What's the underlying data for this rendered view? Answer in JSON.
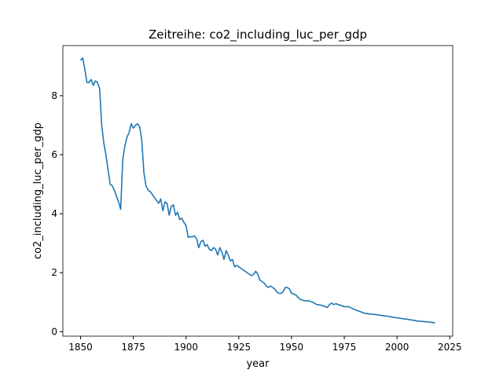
{
  "chart_data": {
    "type": "line",
    "title": "Zeitreihe: co2_including_luc_per_gdp",
    "x_label": "year",
    "y_label": "co2_including_luc_per_gdp",
    "color": "#1f77b4",
    "x": [
      1850,
      1851,
      1852,
      1853,
      1854,
      1855,
      1856,
      1857,
      1858,
      1859,
      1860,
      1861,
      1862,
      1863,
      1864,
      1865,
      1866,
      1867,
      1868,
      1869,
      1870,
      1871,
      1872,
      1873,
      1874,
      1875,
      1876,
      1877,
      1878,
      1879,
      1880,
      1881,
      1882,
      1883,
      1884,
      1885,
      1886,
      1887,
      1888,
      1889,
      1890,
      1891,
      1892,
      1893,
      1894,
      1895,
      1896,
      1897,
      1898,
      1899,
      1900,
      1901,
      1902,
      1903,
      1904,
      1905,
      1906,
      1907,
      1908,
      1909,
      1910,
      1911,
      1912,
      1913,
      1914,
      1915,
      1916,
      1917,
      1918,
      1919,
      1920,
      1921,
      1922,
      1923,
      1924,
      1925,
      1926,
      1927,
      1928,
      1929,
      1930,
      1931,
      1932,
      1933,
      1934,
      1935,
      1936,
      1937,
      1938,
      1939,
      1940,
      1941,
      1942,
      1943,
      1944,
      1945,
      1946,
      1947,
      1948,
      1949,
      1950,
      1952,
      1954,
      1956,
      1958,
      1960,
      1962,
      1964,
      1966,
      1967,
      1968,
      1969,
      1970,
      1971,
      1973,
      1975,
      1977,
      1980,
      1985,
      1990,
      1995,
      2000,
      2005,
      2010,
      2015,
      2018
    ],
    "values": [
      9.2,
      9.28,
      8.9,
      8.45,
      8.45,
      8.55,
      8.35,
      8.5,
      8.45,
      8.25,
      7.0,
      6.4,
      6.0,
      5.5,
      5.0,
      4.95,
      4.8,
      4.6,
      4.4,
      4.15,
      5.85,
      6.3,
      6.6,
      6.75,
      7.05,
      6.9,
      7.0,
      7.05,
      6.95,
      6.5,
      5.4,
      4.95,
      4.8,
      4.75,
      4.65,
      4.55,
      4.45,
      4.35,
      4.5,
      4.1,
      4.4,
      4.35,
      3.95,
      4.25,
      4.3,
      3.95,
      4.05,
      3.8,
      3.85,
      3.7,
      3.6,
      3.2,
      3.22,
      3.22,
      3.25,
      3.15,
      2.85,
      3.05,
      3.1,
      2.9,
      2.95,
      2.8,
      2.75,
      2.85,
      2.8,
      2.6,
      2.85,
      2.7,
      2.45,
      2.75,
      2.6,
      2.4,
      2.45,
      2.2,
      2.25,
      2.2,
      2.15,
      2.1,
      2.05,
      2.0,
      1.95,
      1.9,
      1.95,
      2.05,
      1.95,
      1.75,
      1.7,
      1.65,
      1.55,
      1.5,
      1.55,
      1.5,
      1.45,
      1.35,
      1.3,
      1.3,
      1.35,
      1.5,
      1.5,
      1.45,
      1.3,
      1.25,
      1.1,
      1.05,
      1.05,
      1.0,
      0.92,
      0.9,
      0.85,
      0.82,
      0.92,
      0.97,
      0.92,
      0.95,
      0.9,
      0.85,
      0.85,
      0.75,
      0.62,
      0.58,
      0.53,
      0.47,
      0.42,
      0.36,
      0.33,
      0.3
    ],
    "xlim": [
      1841.6,
      2026.4
    ],
    "xticks": [
      1850,
      1875,
      1900,
      1925,
      1950,
      1975,
      2000,
      2025
    ],
    "ylim": [
      -0.15,
      9.7
    ],
    "yticks": [
      0,
      2,
      4,
      6,
      8
    ],
    "grid": false
  }
}
